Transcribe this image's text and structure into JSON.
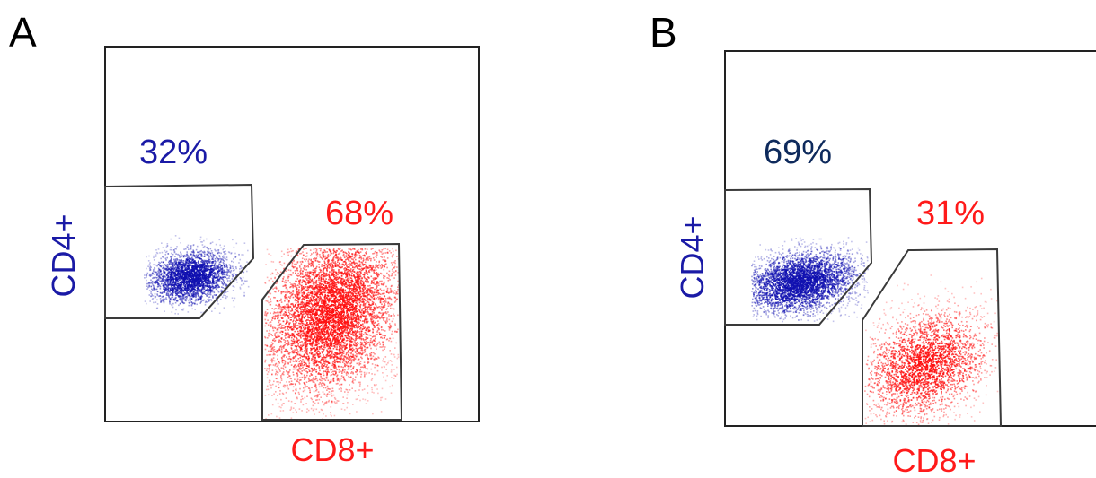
{
  "chart_data": [
    {
      "type": "scatter",
      "panel_label": "A",
      "xlabel": "CD8+",
      "ylabel": "CD4+",
      "label_colors": {
        "x": "#ff1a1a",
        "y": "#1a1aa6"
      },
      "grid": false,
      "gates": [
        {
          "name": "CD4+",
          "percent_label": "32%",
          "percent": 32,
          "color": "#1010b0",
          "label_color": "#1a1aa6"
        },
        {
          "name": "CD8+",
          "percent_label": "68%",
          "percent": 68,
          "color": "#ff1010",
          "label_color": "#ff1a1a"
        }
      ]
    },
    {
      "type": "scatter",
      "panel_label": "B",
      "xlabel": "CD8+",
      "ylabel": "CD4+",
      "label_colors": {
        "x": "#ff1a1a",
        "y": "#1a1aa6"
      },
      "grid": false,
      "gates": [
        {
          "name": "CD4+",
          "percent_label": "69%",
          "percent": 69,
          "color": "#1010b0",
          "label_color": "#0e2a5c"
        },
        {
          "name": "CD8+",
          "percent_label": "31%",
          "percent": 31,
          "color": "#ff1010",
          "label_color": "#ff1a1a"
        }
      ]
    }
  ]
}
